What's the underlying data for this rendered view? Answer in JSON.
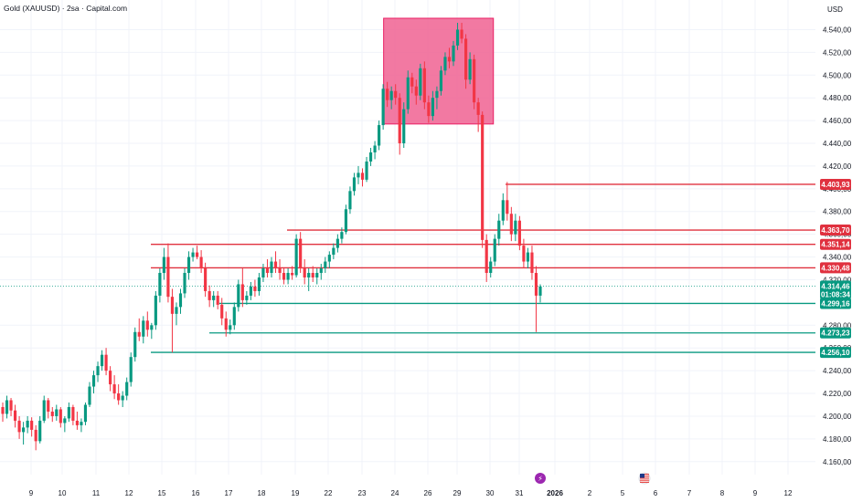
{
  "colors": {
    "up": "#089981",
    "down": "#f23645",
    "support": "#089981",
    "resistance": "#e0313f",
    "zone": "#f06292",
    "grid": "#f0f3fa",
    "text": "#131722",
    "event_icon": "#9c27b0"
  },
  "chart_data": {
    "type": "candlestick",
    "title": "Gold (XAUUSD) · 2sa · Capital.com",
    "currency": "USD",
    "y_ticks": [
      "4.540,00",
      "4.520,00",
      "4.500,00",
      "4.480,00",
      "4.460,00",
      "4.440,00",
      "4.420,00",
      "4.400,00",
      "4.380,00",
      "4.360,00",
      "4.340,00",
      "4.320,00",
      "4.280,00",
      "4.260,00",
      "4.240,00",
      "4.220,00",
      "4.200,00",
      "4.180,00",
      "4.160,00"
    ],
    "y_range": [
      4155,
      4550
    ],
    "x_ticks": [
      "9",
      "10",
      "11",
      "12",
      "15",
      "16",
      "17",
      "18",
      "19",
      "22",
      "23",
      "24",
      "26",
      "29",
      "30",
      "31",
      "2026",
      "2",
      "5",
      "6",
      "7",
      "8",
      "9",
      "12"
    ],
    "last_price": {
      "value": "4.314,46",
      "countdown": "01:08:34"
    },
    "levels": [
      {
        "value": 4403.93,
        "label": "4.403,93",
        "kind": "resistance"
      },
      {
        "value": 4363.7,
        "label": "4.363,70",
        "kind": "resistance"
      },
      {
        "value": 4351.14,
        "label": "4.351,14",
        "kind": "resistance"
      },
      {
        "value": 4330.48,
        "label": "4.330,48",
        "kind": "resistance"
      },
      {
        "value": 4299.16,
        "label": "4.299,16",
        "kind": "support"
      },
      {
        "value": 4273.23,
        "label": "4.273,23",
        "kind": "support"
      },
      {
        "value": 4256.1,
        "label": "4.256,10",
        "kind": "support"
      }
    ],
    "zone": {
      "from_date": "23",
      "to_date": "29",
      "high": 4550,
      "low": 4457
    },
    "events": [
      {
        "date": "31",
        "icon": "lightning-icon"
      },
      {
        "date": "5",
        "icon": "us-flag-icon"
      }
    ],
    "candles": [
      [
        4208,
        4212,
        4195,
        4202
      ],
      [
        4202,
        4218,
        4198,
        4214
      ],
      [
        4214,
        4216,
        4200,
        4205
      ],
      [
        4205,
        4210,
        4190,
        4196
      ],
      [
        4196,
        4200,
        4180,
        4186
      ],
      [
        4186,
        4195,
        4175,
        4190
      ],
      [
        4190,
        4200,
        4185,
        4196
      ],
      [
        4196,
        4199,
        4182,
        4188
      ],
      [
        4188,
        4192,
        4170,
        4178
      ],
      [
        4178,
        4200,
        4176,
        4196
      ],
      [
        4196,
        4218,
        4194,
        4214
      ],
      [
        4214,
        4216,
        4198,
        4204
      ],
      [
        4204,
        4208,
        4195,
        4200
      ],
      [
        4200,
        4210,
        4196,
        4206
      ],
      [
        4206,
        4208,
        4190,
        4194
      ],
      [
        4194,
        4200,
        4186,
        4198
      ],
      [
        4198,
        4212,
        4195,
        4208
      ],
      [
        4208,
        4210,
        4192,
        4196
      ],
      [
        4196,
        4204,
        4188,
        4192
      ],
      [
        4192,
        4198,
        4186,
        4195
      ],
      [
        4195,
        4212,
        4192,
        4210
      ],
      [
        4210,
        4230,
        4208,
        4226
      ],
      [
        4226,
        4240,
        4220,
        4236
      ],
      [
        4236,
        4248,
        4230,
        4244
      ],
      [
        4244,
        4258,
        4240,
        4254
      ],
      [
        4254,
        4260,
        4236,
        4240
      ],
      [
        4240,
        4244,
        4222,
        4228
      ],
      [
        4228,
        4236,
        4215,
        4220
      ],
      [
        4220,
        4228,
        4210,
        4214
      ],
      [
        4214,
        4222,
        4208,
        4218
      ],
      [
        4218,
        4234,
        4214,
        4230
      ],
      [
        4230,
        4256,
        4226,
        4252
      ],
      [
        4252,
        4278,
        4248,
        4274
      ],
      [
        4274,
        4286,
        4266,
        4270
      ],
      [
        4270,
        4288,
        4264,
        4284
      ],
      [
        4284,
        4292,
        4270,
        4276
      ],
      [
        4276,
        4282,
        4268,
        4280
      ],
      [
        4280,
        4310,
        4276,
        4306
      ],
      [
        4306,
        4330,
        4300,
        4326
      ],
      [
        4326,
        4348,
        4320,
        4340
      ],
      [
        4340,
        4352,
        4300,
        4305
      ],
      [
        4305,
        4312,
        4256,
        4290
      ],
      [
        4290,
        4300,
        4280,
        4296
      ],
      [
        4296,
        4312,
        4290,
        4308
      ],
      [
        4308,
        4330,
        4304,
        4326
      ],
      [
        4326,
        4345,
        4320,
        4340
      ],
      [
        4340,
        4348,
        4336,
        4344
      ],
      [
        4344,
        4350,
        4338,
        4340
      ],
      [
        4340,
        4346,
        4326,
        4330
      ],
      [
        4330,
        4335,
        4305,
        4310
      ],
      [
        4310,
        4315,
        4296,
        4302
      ],
      [
        4302,
        4310,
        4296,
        4306
      ],
      [
        4306,
        4310,
        4294,
        4298
      ],
      [
        4298,
        4304,
        4280,
        4286
      ],
      [
        4286,
        4292,
        4270,
        4276
      ],
      [
        4276,
        4285,
        4272,
        4280
      ],
      [
        4280,
        4300,
        4276,
        4296
      ],
      [
        4296,
        4320,
        4292,
        4316
      ],
      [
        4316,
        4330,
        4296,
        4302
      ],
      [
        4302,
        4310,
        4298,
        4306
      ],
      [
        4306,
        4318,
        4302,
        4314
      ],
      [
        4314,
        4320,
        4305,
        4310
      ],
      [
        4310,
        4326,
        4306,
        4322
      ],
      [
        4322,
        4334,
        4318,
        4330
      ],
      [
        4330,
        4338,
        4322,
        4326
      ],
      [
        4326,
        4340,
        4322,
        4336
      ],
      [
        4336,
        4345,
        4326,
        4330
      ],
      [
        4330,
        4338,
        4320,
        4326
      ],
      [
        4326,
        4330,
        4316,
        4320
      ],
      [
        4320,
        4330,
        4316,
        4326
      ],
      [
        4326,
        4332,
        4320,
        4324
      ],
      [
        4324,
        4360,
        4322,
        4356
      ],
      [
        4356,
        4362,
        4326,
        4330
      ],
      [
        4330,
        4338,
        4316,
        4322
      ],
      [
        4322,
        4330,
        4310,
        4326
      ],
      [
        4326,
        4332,
        4318,
        4322
      ],
      [
        4322,
        4330,
        4316,
        4326
      ],
      [
        4326,
        4334,
        4320,
        4330
      ],
      [
        4330,
        4340,
        4326,
        4336
      ],
      [
        4336,
        4345,
        4330,
        4342
      ],
      [
        4342,
        4352,
        4338,
        4348
      ],
      [
        4348,
        4360,
        4344,
        4356
      ],
      [
        4356,
        4366,
        4352,
        4362
      ],
      [
        4362,
        4386,
        4360,
        4382
      ],
      [
        4382,
        4402,
        4378,
        4398
      ],
      [
        4398,
        4414,
        4394,
        4410
      ],
      [
        4410,
        4420,
        4404,
        4414
      ],
      [
        4414,
        4418,
        4402,
        4408
      ],
      [
        4408,
        4428,
        4406,
        4424
      ],
      [
        4424,
        4436,
        4420,
        4432
      ],
      [
        4432,
        4442,
        4426,
        4438
      ],
      [
        4438,
        4460,
        4434,
        4456
      ],
      [
        4456,
        4492,
        4452,
        4488
      ],
      [
        4488,
        4494,
        4472,
        4478
      ],
      [
        4478,
        4490,
        4470,
        4486
      ],
      [
        4486,
        4492,
        4474,
        4480
      ],
      [
        4480,
        4484,
        4430,
        4440
      ],
      [
        4440,
        4476,
        4436,
        4470
      ],
      [
        4470,
        4504,
        4466,
        4498
      ],
      [
        4498,
        4502,
        4484,
        4490
      ],
      [
        4490,
        4496,
        4474,
        4482
      ],
      [
        4482,
        4510,
        4478,
        4506
      ],
      [
        4506,
        4512,
        4470,
        4476
      ],
      [
        4476,
        4482,
        4458,
        4464
      ],
      [
        4464,
        4486,
        4460,
        4480
      ],
      [
        4480,
        4490,
        4470,
        4486
      ],
      [
        4486,
        4508,
        4482,
        4504
      ],
      [
        4504,
        4520,
        4500,
        4516
      ],
      [
        4516,
        4524,
        4506,
        4512
      ],
      [
        4512,
        4530,
        4508,
        4526
      ],
      [
        4526,
        4546,
        4522,
        4540
      ],
      [
        4540,
        4546,
        4528,
        4532
      ],
      [
        4532,
        4536,
        4488,
        4496
      ],
      [
        4496,
        4520,
        4492,
        4514
      ],
      [
        4514,
        4518,
        4470,
        4476
      ],
      [
        4476,
        4480,
        4450,
        4465
      ],
      [
        4465,
        4468,
        4348,
        4355
      ],
      [
        4355,
        4360,
        4318,
        4326
      ],
      [
        4326,
        4340,
        4322,
        4336
      ],
      [
        4336,
        4360,
        4332,
        4356
      ],
      [
        4356,
        4378,
        4350,
        4372
      ],
      [
        4372,
        4396,
        4368,
        4390
      ],
      [
        4390,
        4406,
        4372,
        4378
      ],
      [
        4378,
        4384,
        4354,
        4360
      ],
      [
        4360,
        4378,
        4354,
        4372
      ],
      [
        4372,
        4376,
        4346,
        4350
      ],
      [
        4350,
        4356,
        4330,
        4336
      ],
      [
        4336,
        4348,
        4330,
        4344
      ],
      [
        4344,
        4350,
        4320,
        4326
      ],
      [
        4326,
        4332,
        4274,
        4306
      ],
      [
        4306,
        4316,
        4300,
        4314
      ]
    ]
  }
}
